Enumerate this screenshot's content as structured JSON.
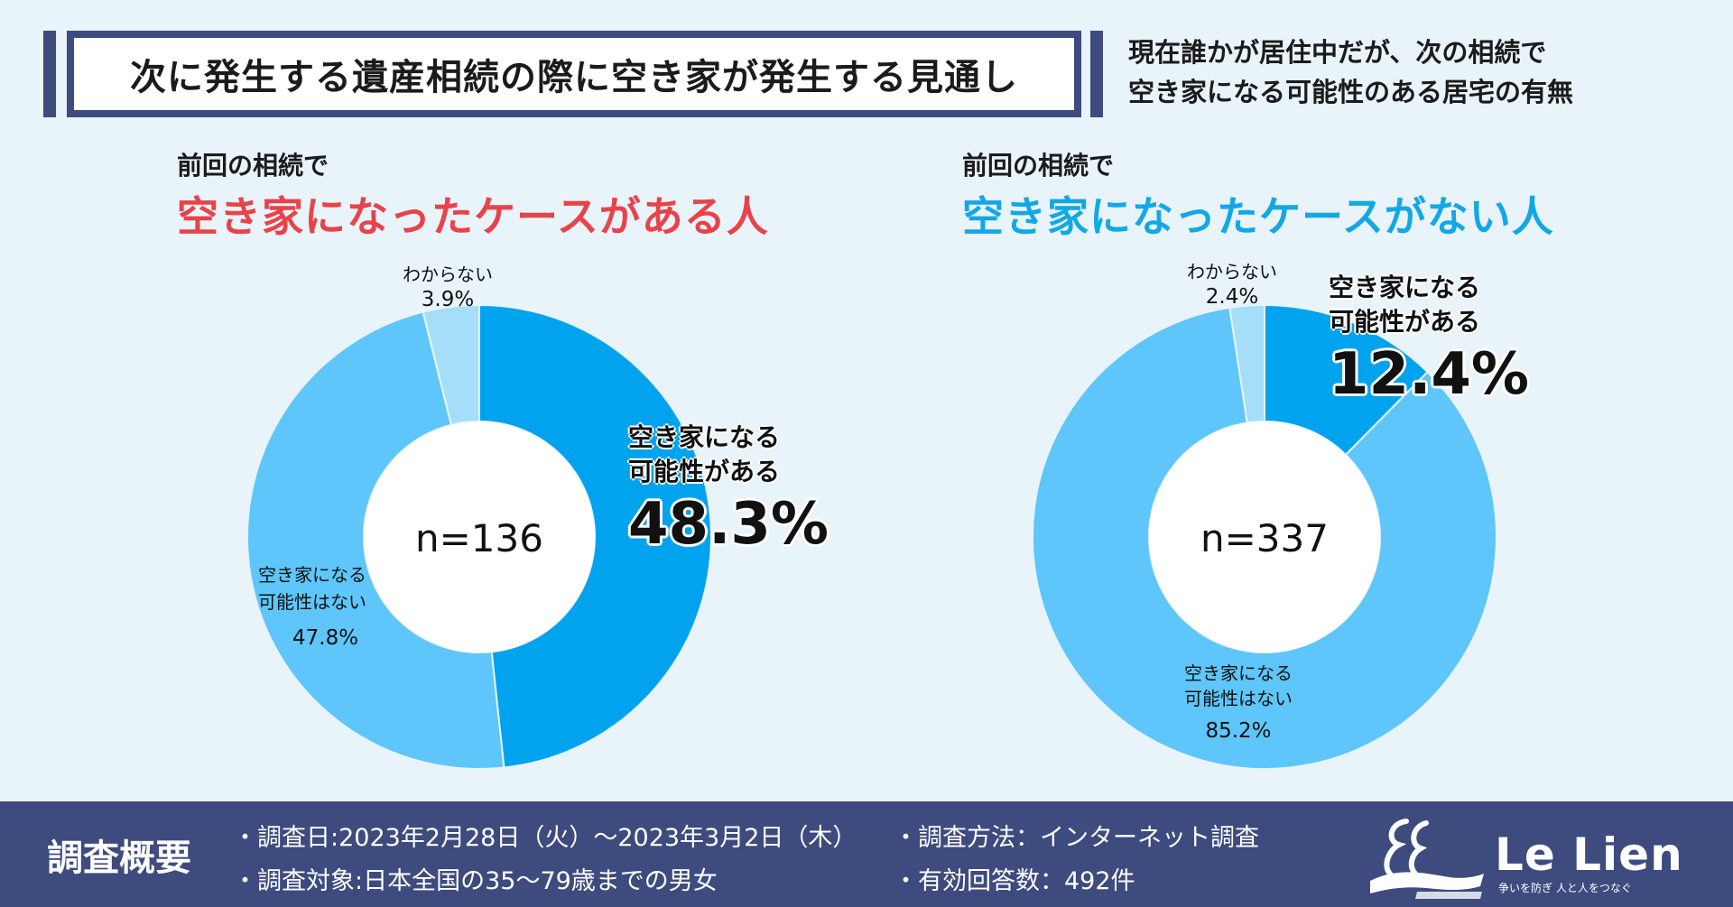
{
  "header": {
    "title": "次に発生する遺産相続の際に空き家が発生する見通し",
    "subtitle_line1": "現在誰かが居住中だが、次の相続で",
    "subtitle_line2": "空き家になる可能性のある居宅の有無"
  },
  "panels": [
    {
      "pre": "前回の相続で",
      "heading": "空き家になったケースがある人",
      "n": "n=136",
      "labels": {
        "yes_line1": "空き家になる",
        "yes_line2": "可能性がある",
        "yes_pct": "48.3%",
        "no_line1": "空き家になる",
        "no_line2": "可能性はない",
        "no_pct": "47.8%",
        "unknown": "わからない",
        "unknown_pct": "3.9%"
      }
    },
    {
      "pre": "前回の相続で",
      "heading": "空き家になったケースがない人",
      "n": "n=337",
      "labels": {
        "yes_line1": "空き家になる",
        "yes_line2": "可能性がある",
        "yes_pct": "12.4%",
        "no_line1": "空き家になる",
        "no_line2": "可能性はない",
        "no_pct": "85.2%",
        "unknown": "わからない",
        "unknown_pct": "2.4%"
      }
    }
  ],
  "chart_data": [
    {
      "type": "pie",
      "title": "空き家になったケースがある人",
      "n": 136,
      "categories": [
        "空き家になる可能性がある",
        "空き家になる可能性はない",
        "わからない"
      ],
      "values": [
        48.3,
        47.8,
        3.9
      ]
    },
    {
      "type": "pie",
      "title": "空き家になったケースがない人",
      "n": 337,
      "categories": [
        "空き家になる可能性がある",
        "空き家になる可能性はない",
        "わからない"
      ],
      "values": [
        12.4,
        85.2,
        2.4
      ]
    }
  ],
  "colors": {
    "yes": "#02a3ee",
    "no": "#5ec6fa",
    "unknown": "#a4def9",
    "accent_red": "#e8434a",
    "accent_blue": "#12a8e6",
    "navy": "#3d4b7e"
  },
  "footer": {
    "title": "調査概要",
    "item_date": "・調査日:2023年2月28日（火）～2023年3月2日（木）",
    "item_target": "・調査対象:日本全国の35～79歳までの男女",
    "item_method": "・調査方法：インターネット調査",
    "item_count": "・有効回答数：492件",
    "logo_text": "Le Lien",
    "logo_tagline": "争いを防ぎ 人と人をつなぐ"
  }
}
